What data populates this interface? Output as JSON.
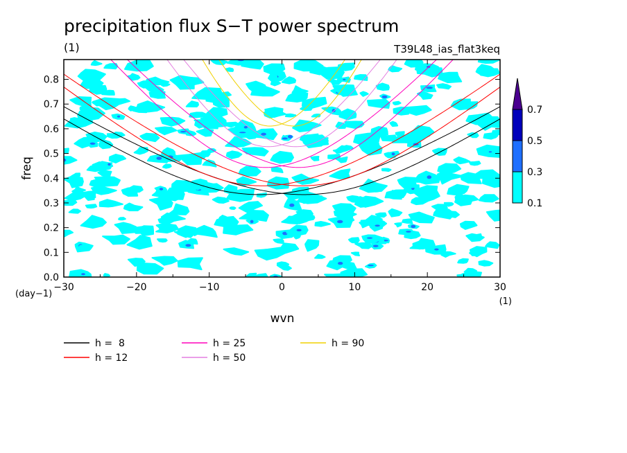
{
  "chart_data": {
    "type": "heatmap",
    "title": "precipitation flux S−T power spectrum",
    "subtitle_left": "(1)",
    "subtitle_right": "T39L48_ias_flat3keq",
    "xlabel": "wvn",
    "ylabel": "freq",
    "x_unit": "(1)",
    "y_unit": "(day−1)",
    "xlim": [
      -30,
      30
    ],
    "ylim": [
      0,
      0.88
    ],
    "x_ticks": [
      -30,
      -20,
      -10,
      0,
      10,
      20,
      30
    ],
    "x_tick_labels": [
      "−30",
      "−20",
      "−10",
      "0",
      "10",
      "20",
      "30"
    ],
    "y_ticks": [
      0,
      0.1,
      0.2,
      0.3,
      0.4,
      0.5,
      0.6,
      0.7,
      0.8
    ],
    "y_tick_labels": [
      "0.0",
      "0.1",
      "0.2",
      "0.3",
      "0.4",
      "0.5",
      "0.6",
      "0.7",
      "0.8"
    ],
    "colorbar": {
      "levels": [
        "0.1",
        "0.3",
        "0.5",
        "0.7"
      ],
      "colors": [
        "#00ffff",
        "#1e6fff",
        "#0000bb",
        "#4b0090"
      ]
    },
    "dispersion_curves": [
      {
        "name": "h =  8",
        "h": 8,
        "color": "#000000"
      },
      {
        "name": "h = 12",
        "h": 12,
        "color": "#ff0000"
      },
      {
        "name": "h = 25",
        "h": 25,
        "color": "#ff00bb"
      },
      {
        "name": "h = 50",
        "h": 50,
        "color": "#e37fe0"
      },
      {
        "name": "h = 90",
        "h": 90,
        "color": "#f0d000"
      }
    ],
    "contour_fill_color": "#00ffff",
    "legend_placement": "bottom-left"
  }
}
